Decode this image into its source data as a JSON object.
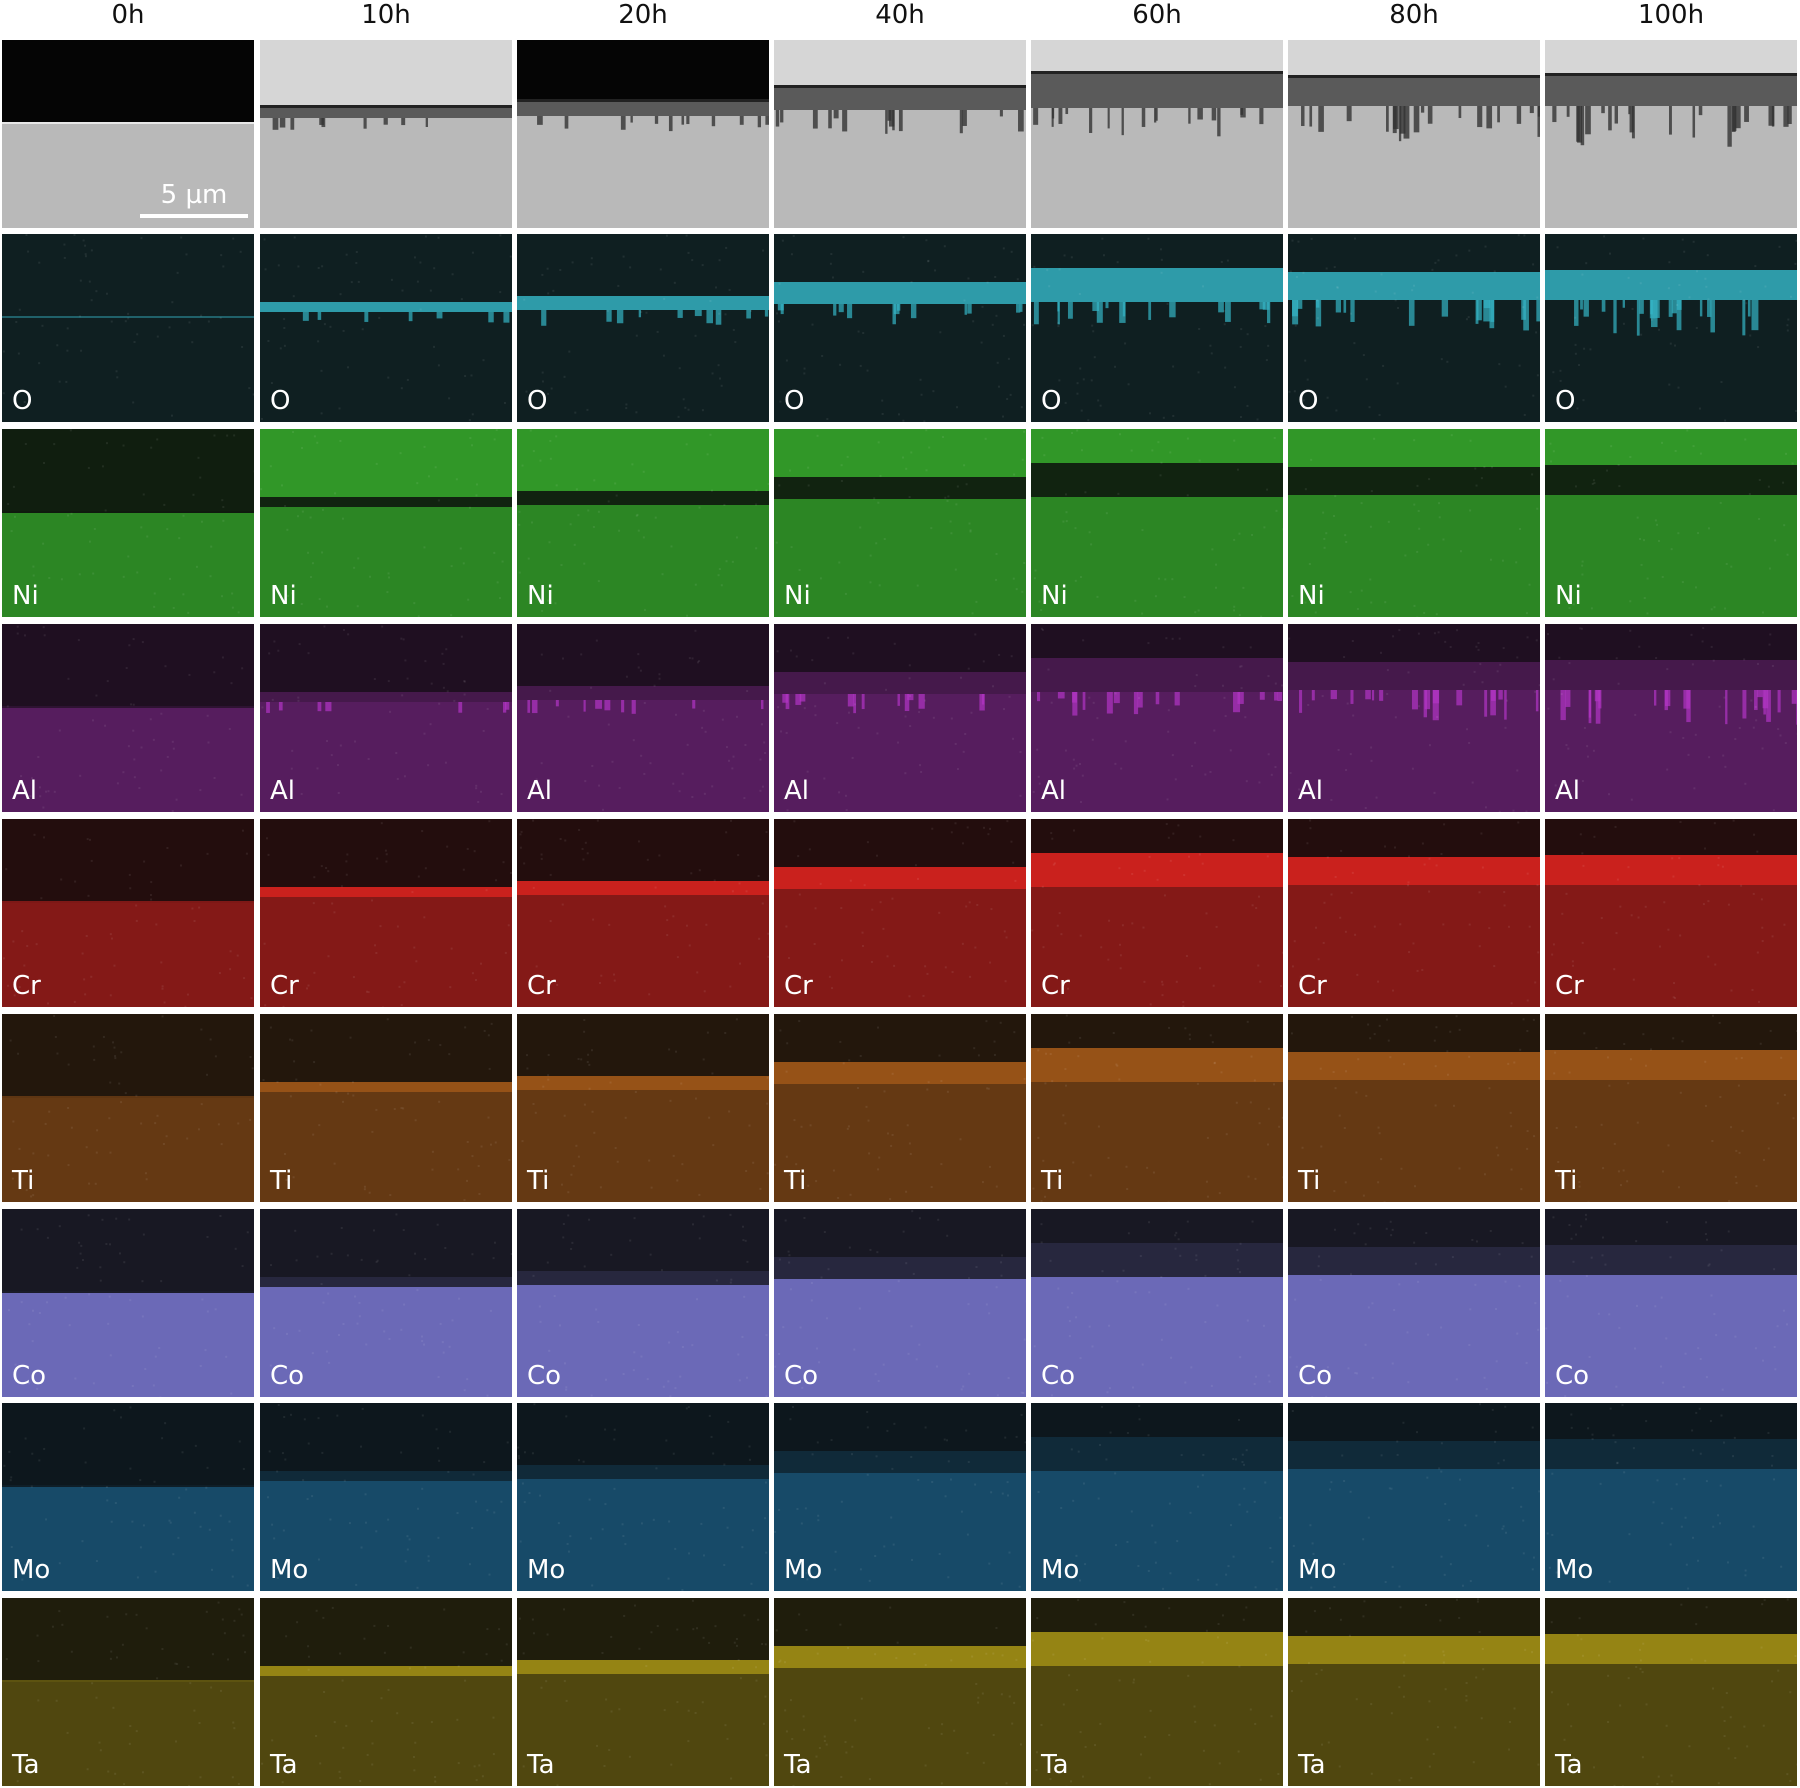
{
  "columns": [
    "0h",
    "10h",
    "20h",
    "40h",
    "60h",
    "80h",
    "100h"
  ],
  "scale_bar": "5 µm",
  "rows": [
    {
      "label": "",
      "kind": "sem",
      "color": "#c9c9c9"
    },
    {
      "label": "O",
      "kind": "map",
      "color": "#35b5c6"
    },
    {
      "label": "Ni",
      "kind": "map",
      "color": "#38b02e"
    },
    {
      "label": "Al",
      "kind": "map",
      "color": "#b234c4"
    },
    {
      "label": "Cr",
      "kind": "map",
      "color": "#d5231f"
    },
    {
      "label": "Ti",
      "kind": "map",
      "color": "#d2701c"
    },
    {
      "label": "Co",
      "kind": "map",
      "color": "#7c7ad6"
    },
    {
      "label": "Mo",
      "kind": "map",
      "color": "#1f74a6"
    },
    {
      "label": "Ta",
      "kind": "map",
      "color": "#b8a317"
    }
  ]
}
